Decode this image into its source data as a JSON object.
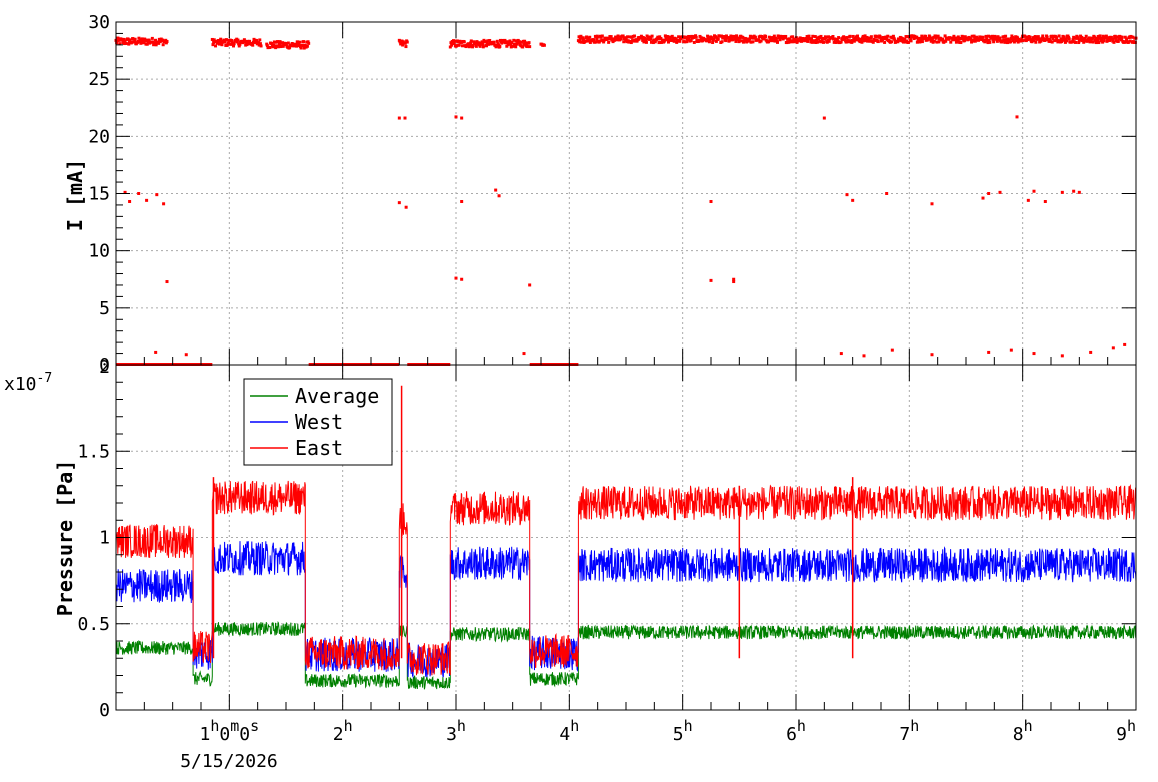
{
  "chart_data": [
    {
      "type": "scatter",
      "panel": "top",
      "ylabel": "I [mA]",
      "ylim": [
        0,
        30
      ],
      "y_ticks": [
        0,
        5,
        10,
        15,
        20,
        25,
        30
      ],
      "x_unit": "hours",
      "xlim": [
        0.0,
        9.0
      ],
      "grid": true,
      "color": "#ff0000",
      "series": [
        {
          "name": "",
          "segments": [
            {
              "x_start": 0.0,
              "x_end": 0.45,
              "y": 28.3
            },
            {
              "x_start": 0.85,
              "x_end": 1.28,
              "y": 28.2
            },
            {
              "x_start": 1.33,
              "x_end": 1.7,
              "y": 28.0
            },
            {
              "x_start": 2.5,
              "x_end": 2.57,
              "y": 28.1
            },
            {
              "x_start": 2.95,
              "x_end": 3.65,
              "y": 28.1
            },
            {
              "x_start": 3.75,
              "x_end": 3.78,
              "y": 28.2
            },
            {
              "x_start": 4.08,
              "x_end": 9.0,
              "y": 28.5
            }
          ],
          "zero_segments": [
            {
              "x_start": 0.0,
              "x_end": 0.85
            },
            {
              "x_start": 1.7,
              "x_end": 2.5
            },
            {
              "x_start": 2.57,
              "x_end": 2.95
            },
            {
              "x_start": 3.65,
              "x_end": 4.08
            }
          ],
          "outliers": [
            [
              0.08,
              15.1
            ],
            [
              0.12,
              14.3
            ],
            [
              0.2,
              15.0
            ],
            [
              0.27,
              14.4
            ],
            [
              0.36,
              14.9
            ],
            [
              0.42,
              14.1
            ],
            [
              0.45,
              7.3
            ],
            [
              0.35,
              1.1
            ],
            [
              0.62,
              0.9
            ],
            [
              2.5,
              21.6
            ],
            [
              2.55,
              21.6
            ],
            [
              2.5,
              14.2
            ],
            [
              2.56,
              13.8
            ],
            [
              3.0,
              21.7
            ],
            [
              3.05,
              21.6
            ],
            [
              3.05,
              14.3
            ],
            [
              3.35,
              15.3
            ],
            [
              3.38,
              14.8
            ],
            [
              3.0,
              7.6
            ],
            [
              3.05,
              7.5
            ],
            [
              3.65,
              7.0
            ],
            [
              3.6,
              1.0
            ],
            [
              5.25,
              14.3
            ],
            [
              5.25,
              7.4
            ],
            [
              5.45,
              7.5
            ],
            [
              5.45,
              7.3
            ],
            [
              6.25,
              21.6
            ],
            [
              6.45,
              14.9
            ],
            [
              6.5,
              14.4
            ],
            [
              6.8,
              15.0
            ],
            [
              7.2,
              14.1
            ],
            [
              7.65,
              14.6
            ],
            [
              7.7,
              15.0
            ],
            [
              7.8,
              15.1
            ],
            [
              7.95,
              21.7
            ],
            [
              8.05,
              14.4
            ],
            [
              8.1,
              15.2
            ],
            [
              8.2,
              14.3
            ],
            [
              8.35,
              15.1
            ],
            [
              8.45,
              15.2
            ],
            [
              8.5,
              15.1
            ],
            [
              6.4,
              1.0
            ],
            [
              6.6,
              0.8
            ],
            [
              6.85,
              1.3
            ],
            [
              7.2,
              0.9
            ],
            [
              7.7,
              1.1
            ],
            [
              7.9,
              1.3
            ],
            [
              8.1,
              1.0
            ],
            [
              8.35,
              0.8
            ],
            [
              8.6,
              1.1
            ],
            [
              8.8,
              1.5
            ],
            [
              8.9,
              1.8
            ]
          ]
        }
      ]
    },
    {
      "type": "line",
      "panel": "bottom",
      "ylabel": "Pressure [Pa]",
      "y_multiplier": "x10",
      "y_multiplier_exp": "-7",
      "ylim": [
        0,
        2.0
      ],
      "y_ticks": [
        0,
        0.5,
        1,
        1.5
      ],
      "y_tick_labels": [
        "0",
        "0.5",
        "1",
        "1.5"
      ],
      "y_axis_top_label": "2",
      "x_unit": "hours",
      "xlim": [
        0.0,
        9.0
      ],
      "grid": true,
      "legend": "top-left",
      "series": [
        {
          "name": "Average",
          "color": "#008000",
          "noise": 0.04,
          "segments": [
            {
              "x_start": 0.0,
              "x_end": 0.68,
              "y": 0.36
            },
            {
              "x_start": 0.68,
              "x_end": 0.85,
              "y": 0.18
            },
            {
              "x_start": 0.85,
              "x_end": 1.67,
              "y": 0.47
            },
            {
              "x_start": 1.67,
              "x_end": 2.5,
              "y": 0.17
            },
            {
              "x_start": 2.5,
              "x_end": 2.57,
              "y": 0.45
            },
            {
              "x_start": 2.57,
              "x_end": 2.95,
              "y": 0.16
            },
            {
              "x_start": 2.95,
              "x_end": 3.65,
              "y": 0.44
            },
            {
              "x_start": 3.65,
              "x_end": 4.08,
              "y": 0.18
            },
            {
              "x_start": 4.08,
              "x_end": 9.0,
              "y": 0.45
            }
          ]
        },
        {
          "name": "West",
          "color": "#0000ff",
          "noise": 0.1,
          "segments": [
            {
              "x_start": 0.0,
              "x_end": 0.68,
              "y": 0.72
            },
            {
              "x_start": 0.68,
              "x_end": 0.85,
              "y": 0.33
            },
            {
              "x_start": 0.85,
              "x_end": 1.67,
              "y": 0.88
            },
            {
              "x_start": 1.67,
              "x_end": 2.5,
              "y": 0.32
            },
            {
              "x_start": 2.5,
              "x_end": 2.57,
              "y": 0.8
            },
            {
              "x_start": 2.57,
              "x_end": 2.95,
              "y": 0.29
            },
            {
              "x_start": 2.95,
              "x_end": 3.65,
              "y": 0.85
            },
            {
              "x_start": 3.65,
              "x_end": 4.08,
              "y": 0.33
            },
            {
              "x_start": 4.08,
              "x_end": 9.0,
              "y": 0.84
            }
          ]
        },
        {
          "name": "East",
          "color": "#ff0000",
          "noise": 0.1,
          "segments": [
            {
              "x_start": 0.0,
              "x_end": 0.68,
              "y": 0.98
            },
            {
              "x_start": 0.68,
              "x_end": 0.85,
              "y": 0.36
            },
            {
              "x_start": 0.85,
              "x_end": 1.67,
              "y": 1.23
            },
            {
              "x_start": 1.67,
              "x_end": 2.5,
              "y": 0.33
            },
            {
              "x_start": 2.5,
              "x_end": 2.57,
              "y": 1.1
            },
            {
              "x_start": 2.57,
              "x_end": 2.95,
              "y": 0.3
            },
            {
              "x_start": 2.95,
              "x_end": 3.65,
              "y": 1.17
            },
            {
              "x_start": 3.65,
              "x_end": 4.08,
              "y": 0.34
            },
            {
              "x_start": 4.08,
              "x_end": 9.0,
              "y": 1.2
            }
          ],
          "spikes": [
            [
              2.52,
              1.88
            ],
            [
              0.86,
              1.35
            ],
            [
              5.5,
              1.3
            ],
            [
              6.5,
              1.35
            ]
          ]
        }
      ]
    }
  ],
  "x_axis": {
    "tick_hours": [
      1,
      2,
      3,
      4,
      5,
      6,
      7,
      8,
      9
    ],
    "tick_labels": [
      {
        "base": "1",
        "sup": "h",
        "extra": "0",
        "sup2": "m",
        "extra2": "0",
        "sup3": "s"
      },
      {
        "base": "2",
        "sup": "h"
      },
      {
        "base": "3",
        "sup": "h"
      },
      {
        "base": "4",
        "sup": "h"
      },
      {
        "base": "5",
        "sup": "h"
      },
      {
        "base": "6",
        "sup": "h"
      },
      {
        "base": "7",
        "sup": "h"
      },
      {
        "base": "8",
        "sup": "h"
      },
      {
        "base": "9",
        "sup": "h"
      }
    ],
    "date_label": "5/15/2026"
  }
}
